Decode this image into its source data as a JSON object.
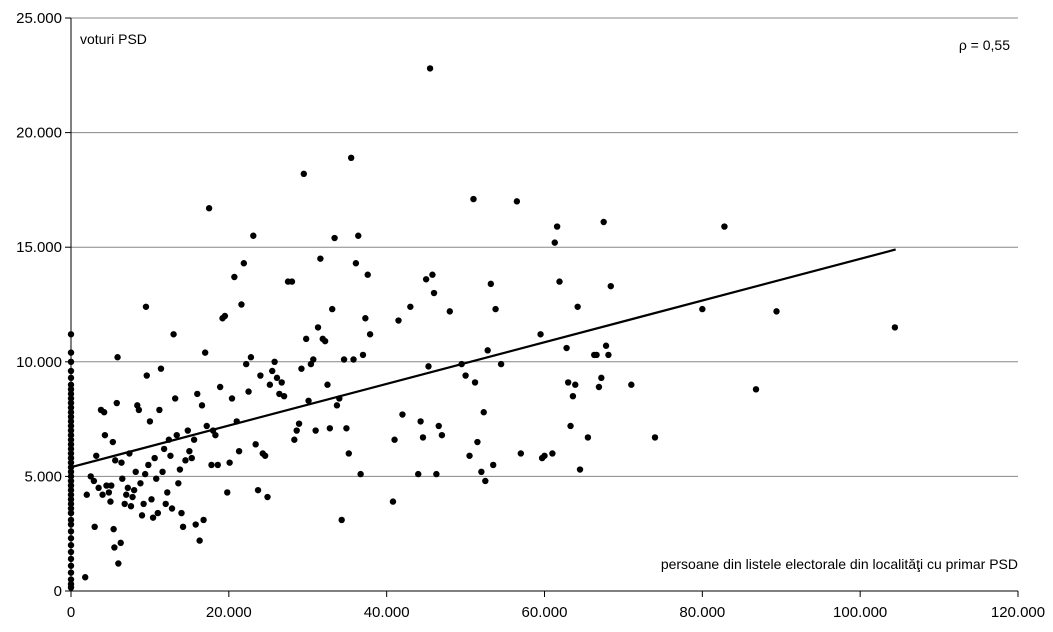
{
  "chart_data": {
    "type": "scatter",
    "title": "",
    "ylabel": "voturi PSD",
    "xlabel": "persoane din listele electorale din localităţi cu primar PSD",
    "correlation_label": "ρ = 0,55",
    "xlim": [
      0,
      120000
    ],
    "ylim": [
      0,
      25000
    ],
    "x_ticks": [
      0,
      20000,
      40000,
      60000,
      80000,
      100000,
      120000
    ],
    "x_tick_labels": [
      "0",
      "20.000",
      "40.000",
      "60.000",
      "80.000",
      "100.000",
      "120.000"
    ],
    "y_ticks": [
      0,
      5000,
      10000,
      15000,
      20000,
      25000
    ],
    "y_tick_labels": [
      "0",
      "5.000",
      "10.000",
      "15.000",
      "20.000",
      "25.000"
    ],
    "grid": true,
    "marker_color": "#000000",
    "trendline": {
      "x": [
        0,
        104500
      ],
      "y": [
        5400,
        14900
      ]
    },
    "points": [
      [
        0,
        11200
      ],
      [
        0,
        10400
      ],
      [
        0,
        10000
      ],
      [
        0,
        9600
      ],
      [
        0,
        9300
      ],
      [
        0,
        9000
      ],
      [
        0,
        8800
      ],
      [
        0,
        8600
      ],
      [
        0,
        8400
      ],
      [
        0,
        8200
      ],
      [
        0,
        8000
      ],
      [
        0,
        7800
      ],
      [
        0,
        7600
      ],
      [
        0,
        7400
      ],
      [
        0,
        7200
      ],
      [
        0,
        7000
      ],
      [
        0,
        6800
      ],
      [
        0,
        6600
      ],
      [
        0,
        6400
      ],
      [
        0,
        6200
      ],
      [
        0,
        6000
      ],
      [
        0,
        5800
      ],
      [
        0,
        5600
      ],
      [
        0,
        5400
      ],
      [
        0,
        5200
      ],
      [
        0,
        5000
      ],
      [
        0,
        4800
      ],
      [
        0,
        4600
      ],
      [
        0,
        4400
      ],
      [
        0,
        4200
      ],
      [
        0,
        4000
      ],
      [
        0,
        3800
      ],
      [
        0,
        3600
      ],
      [
        0,
        3400
      ],
      [
        0,
        3100
      ],
      [
        0,
        2900
      ],
      [
        0,
        2600
      ],
      [
        0,
        2300
      ],
      [
        0,
        2000
      ],
      [
        0,
        1700
      ],
      [
        0,
        1400
      ],
      [
        0,
        1100
      ],
      [
        0,
        800
      ],
      [
        0,
        500
      ],
      [
        0,
        300
      ],
      [
        0,
        150
      ],
      [
        1800,
        600
      ],
      [
        2000,
        4200
      ],
      [
        2500,
        5000
      ],
      [
        2900,
        4800
      ],
      [
        3000,
        2800
      ],
      [
        3200,
        5900
      ],
      [
        3500,
        4500
      ],
      [
        3800,
        7900
      ],
      [
        4000,
        4200
      ],
      [
        4200,
        7800
      ],
      [
        4300,
        6800
      ],
      [
        4500,
        4600
      ],
      [
        4800,
        4300
      ],
      [
        5000,
        3900
      ],
      [
        5100,
        4600
      ],
      [
        5300,
        6500
      ],
      [
        5400,
        2700
      ],
      [
        5500,
        1900
      ],
      [
        5600,
        5700
      ],
      [
        5800,
        8200
      ],
      [
        5900,
        10200
      ],
      [
        6000,
        1200
      ],
      [
        6300,
        2100
      ],
      [
        6400,
        5600
      ],
      [
        6500,
        4900
      ],
      [
        6800,
        3800
      ],
      [
        7000,
        4200
      ],
      [
        7200,
        4500
      ],
      [
        7400,
        6000
      ],
      [
        7600,
        3700
      ],
      [
        7800,
        4100
      ],
      [
        8000,
        4400
      ],
      [
        8200,
        5200
      ],
      [
        8400,
        8100
      ],
      [
        8600,
        7900
      ],
      [
        8800,
        4700
      ],
      [
        9000,
        3300
      ],
      [
        9200,
        3800
      ],
      [
        9400,
        5100
      ],
      [
        9500,
        12400
      ],
      [
        9600,
        9400
      ],
      [
        9800,
        5500
      ],
      [
        10000,
        7400
      ],
      [
        10200,
        4000
      ],
      [
        10400,
        3200
      ],
      [
        10600,
        5800
      ],
      [
        10800,
        4900
      ],
      [
        11000,
        3400
      ],
      [
        11200,
        7900
      ],
      [
        11400,
        9700
      ],
      [
        11600,
        5200
      ],
      [
        11800,
        6200
      ],
      [
        12000,
        3800
      ],
      [
        12200,
        4300
      ],
      [
        12400,
        6600
      ],
      [
        12600,
        5900
      ],
      [
        12800,
        3600
      ],
      [
        13000,
        11200
      ],
      [
        13200,
        8400
      ],
      [
        13400,
        6800
      ],
      [
        13600,
        4700
      ],
      [
        13800,
        5300
      ],
      [
        14000,
        3400
      ],
      [
        14200,
        2800
      ],
      [
        14500,
        5700
      ],
      [
        14800,
        7000
      ],
      [
        15000,
        6100
      ],
      [
        15300,
        5800
      ],
      [
        15600,
        6600
      ],
      [
        15800,
        2900
      ],
      [
        16000,
        8600
      ],
      [
        16300,
        2200
      ],
      [
        16600,
        8100
      ],
      [
        16800,
        3100
      ],
      [
        17000,
        10400
      ],
      [
        17200,
        7200
      ],
      [
        17500,
        16700
      ],
      [
        17800,
        5500
      ],
      [
        18000,
        7000
      ],
      [
        18300,
        6800
      ],
      [
        18600,
        5500
      ],
      [
        18900,
        8900
      ],
      [
        19200,
        11900
      ],
      [
        19500,
        12000
      ],
      [
        19800,
        4300
      ],
      [
        20100,
        5600
      ],
      [
        20400,
        8400
      ],
      [
        20700,
        13700
      ],
      [
        21000,
        7400
      ],
      [
        21300,
        6100
      ],
      [
        21600,
        12500
      ],
      [
        21900,
        14300
      ],
      [
        22200,
        9900
      ],
      [
        22500,
        8700
      ],
      [
        22800,
        10200
      ],
      [
        23100,
        15500
      ],
      [
        23400,
        6400
      ],
      [
        23700,
        4400
      ],
      [
        24000,
        9400
      ],
      [
        24300,
        6000
      ],
      [
        24600,
        5900
      ],
      [
        24900,
        4100
      ],
      [
        25200,
        9000
      ],
      [
        25500,
        9600
      ],
      [
        25800,
        10000
      ],
      [
        26100,
        9300
      ],
      [
        26400,
        8600
      ],
      [
        26700,
        9100
      ],
      [
        27000,
        8500
      ],
      [
        27500,
        13500
      ],
      [
        28000,
        13500
      ],
      [
        28300,
        6600
      ],
      [
        28600,
        7000
      ],
      [
        28900,
        7300
      ],
      [
        29200,
        9700
      ],
      [
        29500,
        18200
      ],
      [
        29800,
        11000
      ],
      [
        30100,
        8300
      ],
      [
        30400,
        9900
      ],
      [
        30700,
        10100
      ],
      [
        31000,
        7000
      ],
      [
        31300,
        11500
      ],
      [
        31600,
        14500
      ],
      [
        31900,
        11000
      ],
      [
        32200,
        10900
      ],
      [
        32500,
        9000
      ],
      [
        32800,
        7100
      ],
      [
        33100,
        12300
      ],
      [
        33400,
        15400
      ],
      [
        33700,
        8100
      ],
      [
        34000,
        8400
      ],
      [
        34300,
        3100
      ],
      [
        34600,
        10100
      ],
      [
        34900,
        7100
      ],
      [
        35200,
        6000
      ],
      [
        35500,
        18900
      ],
      [
        35800,
        10100
      ],
      [
        36100,
        14300
      ],
      [
        36400,
        15500
      ],
      [
        36700,
        5100
      ],
      [
        37000,
        10300
      ],
      [
        37300,
        11900
      ],
      [
        37600,
        13800
      ],
      [
        37900,
        11200
      ],
      [
        40800,
        3900
      ],
      [
        41000,
        6600
      ],
      [
        41500,
        11800
      ],
      [
        42000,
        7700
      ],
      [
        43000,
        12400
      ],
      [
        44000,
        5100
      ],
      [
        44300,
        7400
      ],
      [
        44600,
        6700
      ],
      [
        45000,
        13600
      ],
      [
        45300,
        9800
      ],
      [
        45500,
        22800
      ],
      [
        45800,
        13800
      ],
      [
        46000,
        13000
      ],
      [
        46300,
        5100
      ],
      [
        46600,
        7200
      ],
      [
        47000,
        6800
      ],
      [
        48000,
        12200
      ],
      [
        49500,
        9900
      ],
      [
        50000,
        9400
      ],
      [
        50500,
        5900
      ],
      [
        51000,
        17100
      ],
      [
        51200,
        9100
      ],
      [
        51500,
        6500
      ],
      [
        52000,
        5200
      ],
      [
        52300,
        7800
      ],
      [
        52500,
        4800
      ],
      [
        52800,
        10500
      ],
      [
        53200,
        13400
      ],
      [
        53500,
        5500
      ],
      [
        53800,
        12300
      ],
      [
        54500,
        9900
      ],
      [
        56500,
        17000
      ],
      [
        57000,
        6000
      ],
      [
        59500,
        11200
      ],
      [
        59700,
        5800
      ],
      [
        60000,
        5900
      ],
      [
        61000,
        6000
      ],
      [
        61300,
        15200
      ],
      [
        61600,
        15900
      ],
      [
        61900,
        13500
      ],
      [
        62800,
        10600
      ],
      [
        63000,
        9100
      ],
      [
        63300,
        7200
      ],
      [
        63600,
        8500
      ],
      [
        63900,
        9000
      ],
      [
        64200,
        12400
      ],
      [
        64500,
        5300
      ],
      [
        65500,
        6700
      ],
      [
        66300,
        10300
      ],
      [
        66600,
        10300
      ],
      [
        66900,
        8900
      ],
      [
        67200,
        9300
      ],
      [
        67500,
        16100
      ],
      [
        67800,
        10700
      ],
      [
        68100,
        10300
      ],
      [
        68400,
        13300
      ],
      [
        71000,
        9000
      ],
      [
        74000,
        6700
      ],
      [
        80000,
        12300
      ],
      [
        82800,
        15900
      ],
      [
        86800,
        8800
      ],
      [
        89400,
        12200
      ],
      [
        104400,
        11500
      ]
    ]
  }
}
